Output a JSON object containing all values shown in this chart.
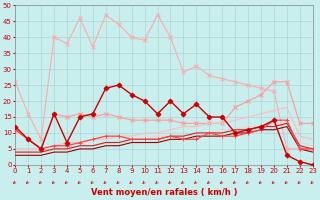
{
  "xlabel": "Vent moyen/en rafales ( km/h )",
  "xlim": [
    0,
    23
  ],
  "ylim": [
    0,
    50
  ],
  "xticks": [
    0,
    1,
    2,
    3,
    4,
    5,
    6,
    7,
    8,
    9,
    10,
    11,
    12,
    13,
    14,
    15,
    16,
    17,
    18,
    19,
    20,
    21,
    22,
    23
  ],
  "yticks": [
    0,
    5,
    10,
    15,
    20,
    25,
    30,
    35,
    40,
    45,
    50
  ],
  "background_color": "#c8eeee",
  "grid_color": "#aacccc",
  "series": [
    {
      "x": [
        0,
        1,
        2,
        3,
        4,
        5,
        6,
        7,
        8,
        9,
        10,
        11,
        12,
        13,
        14,
        15,
        16,
        17,
        18,
        19,
        20,
        21,
        22,
        23
      ],
      "y": [
        26,
        16,
        8,
        40,
        38,
        46,
        37,
        47,
        44,
        40,
        39,
        47,
        40,
        29,
        31,
        28,
        27,
        26,
        25,
        24,
        23,
        5,
        5,
        5
      ],
      "color": "#ffaaaa",
      "linewidth": 0.8,
      "marker": "x",
      "markersize": 2.5,
      "zorder": 2
    },
    {
      "x": [
        0,
        1,
        2,
        3,
        4,
        5,
        6,
        7,
        8,
        9,
        10,
        11,
        12,
        13,
        14,
        15,
        16,
        17,
        18,
        19,
        20,
        21,
        22,
        23
      ],
      "y": [
        11,
        8,
        5,
        16,
        15,
        16,
        15,
        16,
        15,
        14,
        14,
        14,
        14,
        13,
        13,
        13,
        13,
        18,
        20,
        22,
        26,
        26,
        13,
        13
      ],
      "color": "#ff9999",
      "linewidth": 0.8,
      "marker": "x",
      "markersize": 2.5,
      "zorder": 2
    },
    {
      "x": [
        0,
        1,
        2,
        3,
        4,
        5,
        6,
        7,
        8,
        9,
        10,
        11,
        12,
        13,
        14,
        15,
        16,
        17,
        18,
        19,
        20,
        21,
        22,
        23
      ],
      "y": [
        5,
        5,
        5,
        6,
        7,
        7,
        8,
        8,
        9,
        9,
        10,
        10,
        11,
        12,
        12,
        13,
        13,
        14,
        15,
        16,
        17,
        18,
        9,
        8
      ],
      "color": "#ffbbbb",
      "linewidth": 0.8,
      "marker": null,
      "markersize": 0,
      "zorder": 2
    },
    {
      "x": [
        0,
        1,
        2,
        3,
        4,
        5,
        6,
        7,
        8,
        9,
        10,
        11,
        12,
        13,
        14,
        15,
        16,
        17,
        18,
        19,
        20,
        21,
        22,
        23
      ],
      "y": [
        4,
        4,
        4,
        5,
        5,
        6,
        6,
        7,
        7,
        8,
        8,
        9,
        9,
        9,
        10,
        10,
        11,
        11,
        12,
        12,
        13,
        13,
        7,
        6
      ],
      "color": "#ffcccc",
      "linewidth": 0.8,
      "marker": null,
      "markersize": 0,
      "zorder": 2
    },
    {
      "x": [
        0,
        1,
        2,
        3,
        4,
        5,
        6,
        7,
        8,
        9,
        10,
        11,
        12,
        13,
        14,
        15,
        16,
        17,
        18,
        19,
        20,
        21,
        22,
        23
      ],
      "y": [
        12,
        8,
        5,
        16,
        7,
        15,
        16,
        24,
        25,
        22,
        20,
        16,
        20,
        16,
        19,
        15,
        15,
        10,
        11,
        12,
        14,
        3,
        1,
        0
      ],
      "color": "#cc0000",
      "linewidth": 1.0,
      "marker": "D",
      "markersize": 2.5,
      "zorder": 5
    },
    {
      "x": [
        0,
        1,
        2,
        3,
        4,
        5,
        6,
        7,
        8,
        9,
        10,
        11,
        12,
        13,
        14,
        15,
        16,
        17,
        18,
        19,
        20,
        21,
        22,
        23
      ],
      "y": [
        3,
        3,
        3,
        4,
        4,
        5,
        5,
        6,
        6,
        7,
        7,
        7,
        8,
        8,
        9,
        9,
        9,
        10,
        10,
        11,
        11,
        12,
        5,
        4
      ],
      "color": "#990000",
      "linewidth": 0.8,
      "marker": null,
      "markersize": 0,
      "zorder": 4
    },
    {
      "x": [
        0,
        1,
        2,
        3,
        4,
        5,
        6,
        7,
        8,
        9,
        10,
        11,
        12,
        13,
        14,
        15,
        16,
        17,
        18,
        19,
        20,
        21,
        22,
        23
      ],
      "y": [
        4,
        4,
        4,
        5,
        5,
        6,
        6,
        7,
        7,
        8,
        8,
        8,
        9,
        9,
        10,
        10,
        10,
        11,
        11,
        12,
        12,
        13,
        6,
        5
      ],
      "color": "#cc2222",
      "linewidth": 0.8,
      "marker": null,
      "markersize": 0,
      "zorder": 3
    },
    {
      "x": [
        0,
        1,
        2,
        3,
        4,
        5,
        6,
        7,
        8,
        9,
        10,
        11,
        12,
        13,
        14,
        15,
        16,
        17,
        18,
        19,
        20,
        21,
        22,
        23
      ],
      "y": [
        11,
        8,
        5,
        6,
        6,
        7,
        8,
        9,
        9,
        8,
        8,
        8,
        9,
        8,
        8,
        10,
        9,
        9,
        10,
        11,
        14,
        14,
        5,
        5
      ],
      "color": "#ff4444",
      "linewidth": 0.9,
      "marker": "+",
      "markersize": 3,
      "zorder": 4
    }
  ],
  "xlabel_color": "#cc0000",
  "xlabel_fontsize": 6,
  "tick_color": "#cc0000",
  "tick_fontsize": 5,
  "arrow_color": "#cc0000"
}
